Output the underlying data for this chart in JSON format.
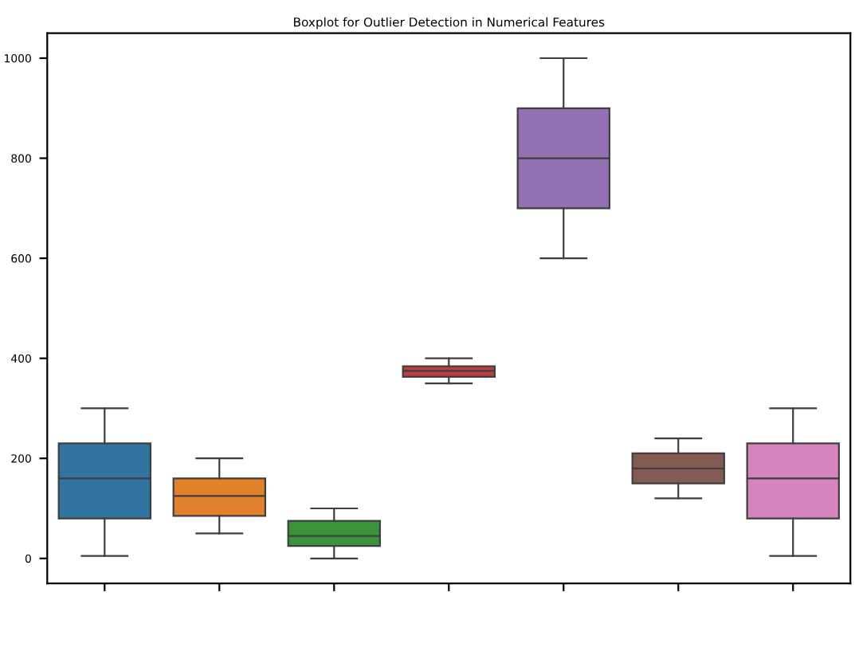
{
  "chart_data": {
    "type": "box",
    "title": "Boxplot for Outlier Detection in Numerical Features",
    "categories": [
      null,
      null,
      null,
      null,
      null,
      null,
      null
    ],
    "colors": [
      "#3274a1",
      "#e1812c",
      "#3a923a",
      "#c03d3e",
      "#9372b2",
      "#845b53",
      "#d684bd"
    ],
    "boxes": [
      {
        "low": 5,
        "q1": 80,
        "median": 160,
        "q3": 230,
        "high": 300
      },
      {
        "low": 50,
        "q1": 85,
        "median": 125,
        "q3": 160,
        "high": 200
      },
      {
        "low": 0,
        "q1": 25,
        "median": 45,
        "q3": 75,
        "high": 100
      },
      {
        "low": 350,
        "q1": 363,
        "median": 375,
        "q3": 384,
        "high": 400
      },
      {
        "low": 600,
        "q1": 700,
        "median": 800,
        "q3": 900,
        "high": 1000
      },
      {
        "low": 120,
        "q1": 150,
        "median": 180,
        "q3": 210,
        "high": 240
      },
      {
        "low": 5,
        "q1": 80,
        "median": 160,
        "q3": 230,
        "high": 300
      }
    ],
    "ylim": [
      -50,
      1050
    ],
    "yticks": [
      0,
      200,
      400,
      600,
      800,
      1000
    ],
    "grid": false
  }
}
